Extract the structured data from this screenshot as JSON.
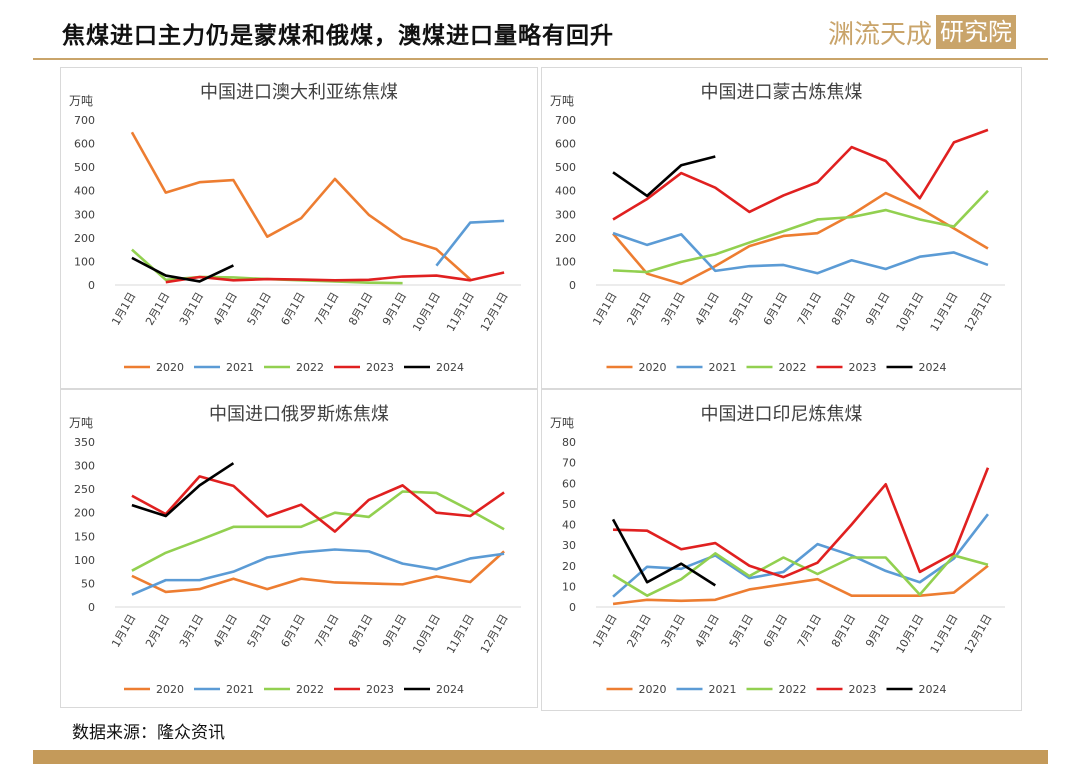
{
  "page": {
    "title": "焦煤进口主力仍是蒙煤和俄煤，澳煤进口量略有回升",
    "logo_text": "渊流天成",
    "logo_box_text": "研究院",
    "source": "数据来源：隆众资讯"
  },
  "colors": {
    "2020": "#ed7d31",
    "2021": "#5b9bd5",
    "2022": "#92d050",
    "2023": "#e02020",
    "2024": "#000000",
    "accent": "#c9a46a"
  },
  "chart_data": [
    {
      "type": "line",
      "title": "中国进口澳大利亚练焦煤",
      "ylabel": "万吨",
      "ylim": [
        0,
        700
      ],
      "yticks": [
        "0",
        "100",
        "200",
        "300",
        "400",
        "500",
        "600",
        "700"
      ],
      "categories": [
        "1月1日",
        "2月1日",
        "3月1日",
        "4月1日",
        "5月1日",
        "6月1日",
        "7月1日",
        "8月1日",
        "9月1日",
        "10月1日",
        "11月1日",
        "12月1日"
      ],
      "legend_position": "bottom",
      "grid": false,
      "series": [
        {
          "name": "2020",
          "values": [
            648,
            392,
            436,
            445,
            205,
            283,
            450,
            298,
            197,
            152,
            24,
            null
          ]
        },
        {
          "name": "2021",
          "values": [
            null,
            null,
            null,
            null,
            null,
            null,
            null,
            null,
            null,
            82,
            265,
            272
          ]
        },
        {
          "name": "2022",
          "values": [
            150,
            22,
            34,
            32,
            25,
            20,
            15,
            10,
            8,
            null,
            null,
            null
          ]
        },
        {
          "name": "2023",
          "values": [
            null,
            12,
            34,
            20,
            25,
            23,
            20,
            22,
            36,
            40,
            20,
            53
          ]
        },
        {
          "name": "2024",
          "values": [
            115,
            40,
            15,
            83,
            null,
            null,
            null,
            null,
            null,
            null,
            null,
            null
          ]
        }
      ]
    },
    {
      "type": "line",
      "title": "中国进口蒙古炼焦煤",
      "ylabel": "万吨",
      "ylim": [
        0,
        700
      ],
      "yticks": [
        "0",
        "100",
        "200",
        "300",
        "400",
        "500",
        "600",
        "700"
      ],
      "categories": [
        "1月1日",
        "2月1日",
        "3月1日",
        "4月1日",
        "5月1日",
        "6月1日",
        "7月1日",
        "8月1日",
        "9月1日",
        "10月1日",
        "11月1日",
        "12月1日"
      ],
      "legend_position": "bottom",
      "grid": false,
      "series": [
        {
          "name": "2020",
          "values": [
            218,
            48,
            5,
            80,
            165,
            208,
            220,
            298,
            390,
            325,
            240,
            155
          ]
        },
        {
          "name": "2021",
          "values": [
            220,
            170,
            215,
            60,
            80,
            85,
            50,
            105,
            68,
            120,
            138,
            85
          ]
        },
        {
          "name": "2022",
          "values": [
            62,
            55,
            98,
            130,
            180,
            228,
            278,
            288,
            318,
            278,
            248,
            400
          ]
        },
        {
          "name": "2023",
          "values": [
            278,
            365,
            475,
            413,
            310,
            380,
            436,
            585,
            526,
            368,
            605,
            658
          ]
        },
        {
          "name": "2024",
          "values": [
            478,
            378,
            508,
            545,
            null,
            null,
            null,
            null,
            null,
            null,
            null,
            null
          ]
        }
      ]
    },
    {
      "type": "line",
      "title": "中国进口俄罗斯炼焦煤",
      "ylabel": "万吨",
      "ylim": [
        0,
        350
      ],
      "yticks": [
        "0",
        "50",
        "100",
        "150",
        "200",
        "250",
        "300",
        "350"
      ],
      "categories": [
        "1月1日",
        "2月1日",
        "3月1日",
        "4月1日",
        "5月1日",
        "6月1日",
        "7月1日",
        "8月1日",
        "9月1日",
        "10月1日",
        "11月1日",
        "12月1日"
      ],
      "legend_position": "bottom",
      "grid": false,
      "series": [
        {
          "name": "2020",
          "values": [
            66,
            32,
            38,
            60,
            38,
            60,
            52,
            50,
            48,
            65,
            53,
            118
          ]
        },
        {
          "name": "2021",
          "values": [
            26,
            57,
            57,
            75,
            105,
            116,
            122,
            118,
            92,
            80,
            103,
            113
          ]
        },
        {
          "name": "2022",
          "values": [
            77,
            115,
            142,
            170,
            170,
            170,
            200,
            191,
            245,
            242,
            205,
            165
          ]
        },
        {
          "name": "2023",
          "values": [
            236,
            197,
            277,
            257,
            192,
            217,
            160,
            227,
            258,
            200,
            193,
            243
          ]
        },
        {
          "name": "2024",
          "values": [
            216,
            193,
            258,
            305,
            null,
            null,
            null,
            null,
            null,
            null,
            null,
            null
          ]
        }
      ]
    },
    {
      "type": "line",
      "title": "中国进口印尼炼焦煤",
      "ylabel": "万吨",
      "ylim": [
        0,
        80
      ],
      "yticks": [
        "0",
        "10",
        "20",
        "30",
        "40",
        "50",
        "60",
        "70",
        "80"
      ],
      "categories": [
        "1月1日",
        "2月1日",
        "3月1日",
        "4月1日",
        "5月1日",
        "6月1日",
        "7月1日",
        "8月1日",
        "9月1日",
        "10月1日",
        "11月1日",
        "12月1日"
      ],
      "legend_position": "bottom",
      "grid": false,
      "series": [
        {
          "name": "2020",
          "values": [
            1.5,
            3.5,
            3,
            3.5,
            8.5,
            11,
            13.5,
            5.5,
            5.5,
            5.5,
            7,
            20
          ]
        },
        {
          "name": "2021",
          "values": [
            5,
            19.5,
            18.5,
            25,
            14,
            17,
            30.5,
            25,
            17.5,
            12,
            23.5,
            45
          ]
        },
        {
          "name": "2022",
          "values": [
            15.5,
            5.5,
            13.5,
            26,
            15,
            24,
            16,
            24,
            24,
            6,
            25,
            20.5
          ]
        },
        {
          "name": "2023",
          "values": [
            37.5,
            37,
            28,
            31,
            20,
            14.5,
            21.5,
            40,
            59.5,
            17,
            26,
            67.5
          ]
        },
        {
          "name": "2024",
          "values": [
            42.5,
            12,
            21,
            10.5,
            null,
            null,
            null,
            null,
            null,
            null,
            null,
            null
          ]
        }
      ]
    }
  ]
}
